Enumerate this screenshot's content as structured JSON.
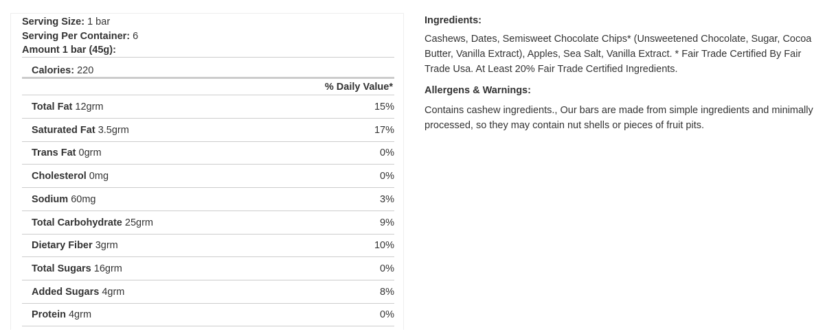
{
  "serving": {
    "size_label": "Serving Size:",
    "size_value": "1 bar",
    "per_container_label": "Serving Per Container:",
    "per_container_value": "6",
    "amount_label": "Amount 1 bar (45g):"
  },
  "calories": {
    "label": "Calories:",
    "value": "220"
  },
  "daily_value_header": "% Daily Value*",
  "nutrients": [
    {
      "name": "Total Fat",
      "amount": "12grm",
      "dv": "15%"
    },
    {
      "name": "Saturated Fat",
      "amount": "3.5grm",
      "dv": "17%"
    },
    {
      "name": "Trans Fat",
      "amount": "0grm",
      "dv": "0%"
    },
    {
      "name": "Cholesterol",
      "amount": "0mg",
      "dv": "0%"
    },
    {
      "name": "Sodium",
      "amount": "60mg",
      "dv": "3%"
    },
    {
      "name": "Total Carbohydrate",
      "amount": "25grm",
      "dv": "9%"
    },
    {
      "name": "Dietary Fiber",
      "amount": "3grm",
      "dv": "10%"
    },
    {
      "name": "Total Sugars",
      "amount": "16grm",
      "dv": "0%"
    },
    {
      "name": "Added Sugars",
      "amount": "4grm",
      "dv": "8%"
    },
    {
      "name": "Protein",
      "amount": "4grm",
      "dv": "0%"
    }
  ],
  "ingredients": {
    "heading": "Ingredients:",
    "text": "Cashews, Dates, Semisweet Chocolate Chips* (Unsweetened Chocolate, Sugar, Cocoa Butter, Vanilla Extract), Apples, Sea Salt, Vanilla Extract. * Fair Trade Certified By Fair Trade Usa. At Least 20% Fair Trade Certified Ingredients."
  },
  "allergens": {
    "heading": "Allergens & Warnings:",
    "text": "Contains cashew ingredients., Our bars are made from simple ingredients and minimally processed, so they may contain nut shells or pieces of fruit pits."
  }
}
